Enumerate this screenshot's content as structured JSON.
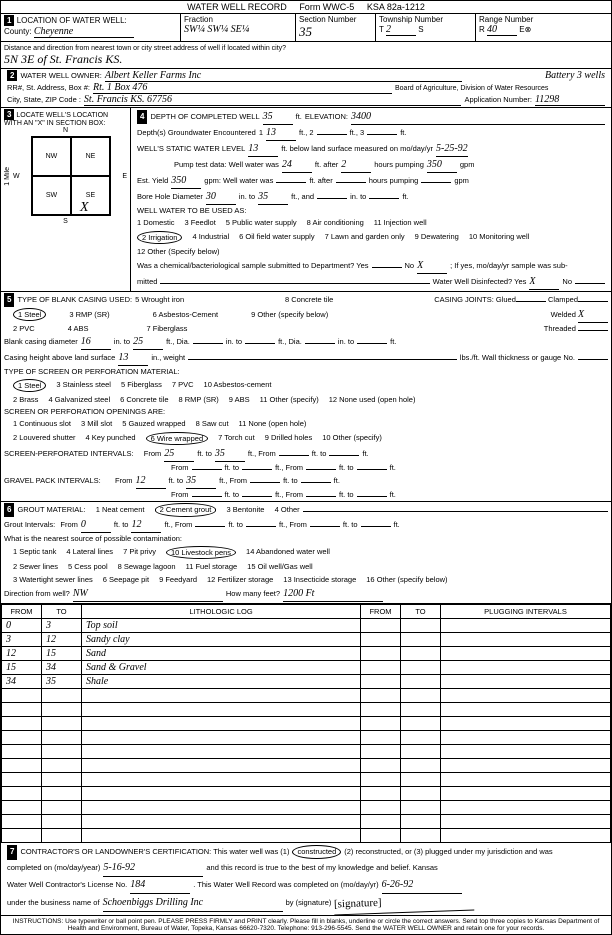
{
  "header": {
    "title": "WATER WELL RECORD",
    "form": "Form WWC-5",
    "ksa": "KSA 82a-1212"
  },
  "s1": {
    "label": "LOCATION OF WATER WELL:",
    "county_lbl": "County:",
    "county": "Cheyenne",
    "fraction_lbl": "Fraction",
    "fraction": "SW¼ SW¼ SE¼",
    "section_lbl": "Section Number",
    "section": "35",
    "township_lbl": "Township Number",
    "township_t": "T",
    "township": "2",
    "township_s": "S",
    "range_lbl": "Range Number",
    "range_r": "R",
    "range": "40",
    "range_e": "E⊗",
    "dist_lbl": "Distance and direction from nearest town or city street address of well if located within city?",
    "dist": "5N  3E  of  St. Francis  KS."
  },
  "s2": {
    "label": "WATER WELL OWNER:",
    "owner": "Albert Keller Farms Inc",
    "note": "Battery 3 wells",
    "rr_lbl": "RR#, St. Address, Box #:",
    "rr": "Rt. 1 Box 476",
    "board": "Board of Agriculture, Division of Water Resources",
    "city_lbl": "City, State, ZIP Code :",
    "city": "St. Francis  KS.  67756",
    "app_lbl": "Application Number:",
    "app": "11298"
  },
  "s3": {
    "label": "LOCATE WELL'S LOCATION WITH AN \"X\" IN SECTION BOX:",
    "n": "N",
    "s": "S",
    "e": "E",
    "w": "W",
    "nw": "NW",
    "ne": "NE",
    "sw": "SW",
    "se": "SE",
    "mile": "1 Mile",
    "x": "X"
  },
  "s4": {
    "label": "DEPTH OF COMPLETED WELL",
    "depth": "35",
    "ft": "ft.",
    "elev_lbl": "ELEVATION:",
    "elev": "3400",
    "gw_lbl": "Depth(s) Groundwater Encountered",
    "gw1": "13",
    "gw2": "",
    "gw3": "",
    "static_lbl": "WELL'S STATIC WATER LEVEL",
    "static": "13",
    "static_txt": "ft. below land surface measured on mo/day/yr",
    "static_date": "5-25-92",
    "pump_lbl": "Pump test data:  Well water was",
    "pump_l": "24",
    "after": "ft. after",
    "pump_h": "2",
    "hp": "hours pumping",
    "pump_g": "350",
    "gpm": "gpm",
    "est_lbl": "Est. Yield",
    "est": "350",
    "est_g": "gpm:  Well water was",
    "est_l": "",
    "est_h": "",
    "bore_lbl": "Bore Hole Diameter",
    "bore1": "30",
    "into": "in. to",
    "bore2": "35",
    "and": "ft., and",
    "bore3": "",
    "bore4": "",
    "use_lbl": "WELL WATER TO BE USED AS:",
    "o1": "1 Domestic",
    "o2": "2 Irrigation",
    "o3": "3 Feedlot",
    "o4": "4 Industrial",
    "o5": "5 Public water supply",
    "o6": "6 Oil field water supply",
    "o7": "7 Lawn and garden only",
    "o8": "8 Air conditioning",
    "o9": "9 Dewatering",
    "o10": "10 Monitoring well",
    "o11": "11 Injection well",
    "o12": "12 Other (Specify below)",
    "chem_lbl": "Was a chemical/bacteriological sample submitted to Department? Yes",
    "chem_no": "No",
    "chem_x": "X",
    "chem_txt": "; If yes, mo/day/yr sample was sub-",
    "mitted": "mitted",
    "disinf": "Water Well Disinfected?  Yes",
    "dx": "X",
    "dno": "No"
  },
  "s5": {
    "label": "TYPE OF BLANK CASING USED:",
    "c1": "1 Steel",
    "c2": "2 PVC",
    "c3": "3 RMP (SR)",
    "c4": "4 ABS",
    "c5": "5 Wrought iron",
    "c6": "6 Asbestos-Cement",
    "c7": "7 Fiberglass",
    "c8": "8 Concrete tile",
    "c9": "9 Other (specify below)",
    "cj_lbl": "CASING JOINTS: Glued",
    "cj_w": "Welded",
    "cj_wx": "X",
    "cj_c": "Clamped",
    "cj_t": "Threaded",
    "bcd_lbl": "Blank casing diameter",
    "bcd1": "16",
    "bcd_to": "in. to",
    "bcd2": "25",
    "bcd_dia": "ft., Dia.",
    "bcd3": "",
    "bcd4": "",
    "bcd5": "",
    "bcd6": "",
    "ch_lbl": "Casing height above land surface",
    "ch": "13",
    "ch_w": "in., weight",
    "ch_lbs": "lbs./ft. Wall thickness or gauge No.",
    "sp_lbl": "TYPE OF SCREEN OR PERFORATION MATERIAL:",
    "sp1": "1 Steel",
    "sp2": "2 Brass",
    "sp3": "3 Stainless steel",
    "sp4": "4 Galvanized steel",
    "sp5": "5 Fiberglass",
    "sp6": "6 Concrete tile",
    "sp7": "7 PVC",
    "sp8": "8 RMP (SR)",
    "sp9": "9 ABS",
    "sp10": "10 Asbestos-cement",
    "sp11": "11 Other (specify)",
    "sp12": "12 None used (open hole)",
    "op_lbl": "SCREEN OR PERFORATION OPENINGS ARE:",
    "op1": "1 Continuous slot",
    "op2": "2 Louvered shutter",
    "op3": "3 Mill slot",
    "op4": "4 Key punched",
    "op5": "5 Gauzed wrapped",
    "op6": "6 Wire wrapped",
    "op7": "7 Torch cut",
    "op8": "8 Saw cut",
    "op9": "9 Drilled holes",
    "op10": "10 Other (specify)",
    "op11": "11 None (open hole)",
    "spi_lbl": "SCREEN-PERFORATED INTERVALS:",
    "from": "From",
    "to": "ft. to",
    "ftf": "ft., From",
    "spi1": "25",
    "spi2": "35",
    "gp_lbl": "GRAVEL PACK INTERVALS:",
    "gp1": "12",
    "gp2": "35"
  },
  "s6": {
    "label": "GROUT MATERIAL:",
    "g1": "1 Neat cement",
    "g2": "2 Cement grout",
    "g3": "3 Bentonite",
    "g4": "4 Other",
    "gi_lbl": "Grout Intervals:",
    "gi1": "0",
    "gi2": "12",
    "near_lbl": "What is the nearest source of possible contamination:",
    "n1": "1 Septic tank",
    "n2": "2 Sewer lines",
    "n3": "3 Watertight sewer lines",
    "n4": "4 Lateral lines",
    "n5": "5 Cess pool",
    "n6": "6 Seepage pit",
    "n7": "7 Pit privy",
    "n8": "8 Sewage lagoon",
    "n9": "9 Feedyard",
    "n10": "10 Livestock pens",
    "n11": "11 Fuel storage",
    "n12": "12 Fertilizer storage",
    "n13": "13 Insecticide storage",
    "n14": "14 Abandoned water well",
    "n15": "15 Oil well/Gas well",
    "n16": "16 Other (specify below)",
    "dir_lbl": "Direction from well?",
    "dir": "NW",
    "hmf_lbl": "How many feet?",
    "hmf": "1200 Ft"
  },
  "log": {
    "h_from": "FROM",
    "h_to": "TO",
    "h_lith": "LITHOLOGIC LOG",
    "h_from2": "FROM",
    "h_to2": "TO",
    "h_plug": "PLUGGING INTERVALS",
    "rows": [
      {
        "f": "0",
        "t": "3",
        "l": "Top soil"
      },
      {
        "f": "3",
        "t": "12",
        "l": "Sandy clay"
      },
      {
        "f": "12",
        "t": "15",
        "l": "Sand"
      },
      {
        "f": "15",
        "t": "34",
        "l": "Sand & Gravel"
      },
      {
        "f": "34",
        "t": "35",
        "l": "Shale"
      }
    ],
    "blank_count": 11
  },
  "s7": {
    "label": "CONTRACTOR'S OR LANDOWNER'S CERTIFICATION: This water well was (1)",
    "constructed": "constructed",
    "txt2": "(2) reconstructed, or (3) plugged under my jurisdiction and was",
    "comp_lbl": "completed on (mo/day/year)",
    "comp": "5-16-92",
    "txt3": "and this record is true to the best of my knowledge and belief. Kansas",
    "lic_lbl": "Water Well Contractor's License No.",
    "lic": "184",
    "txt4": ". This Water Well Record was completed on (mo/day/yr)",
    "rec_date": "6-26-92",
    "bus_lbl": "under the business name of",
    "bus": "Schoenbiggs Drilling Inc",
    "sig_lbl": "by (signature)",
    "sig": "[signature]"
  },
  "instr": "INSTRUCTIONS: Use typewriter or ball point pen. PLEASE PRESS FIRMLY and PRINT clearly. Please fill in blanks, underline or circle the correct answers. Send top three copies to Kansas Department of Health and Environment, Bureau of Water, Topeka, Kansas 66620-7320. Telephone: 913-296-5545. Send the WATER WELL OWNER and retain one for your records."
}
